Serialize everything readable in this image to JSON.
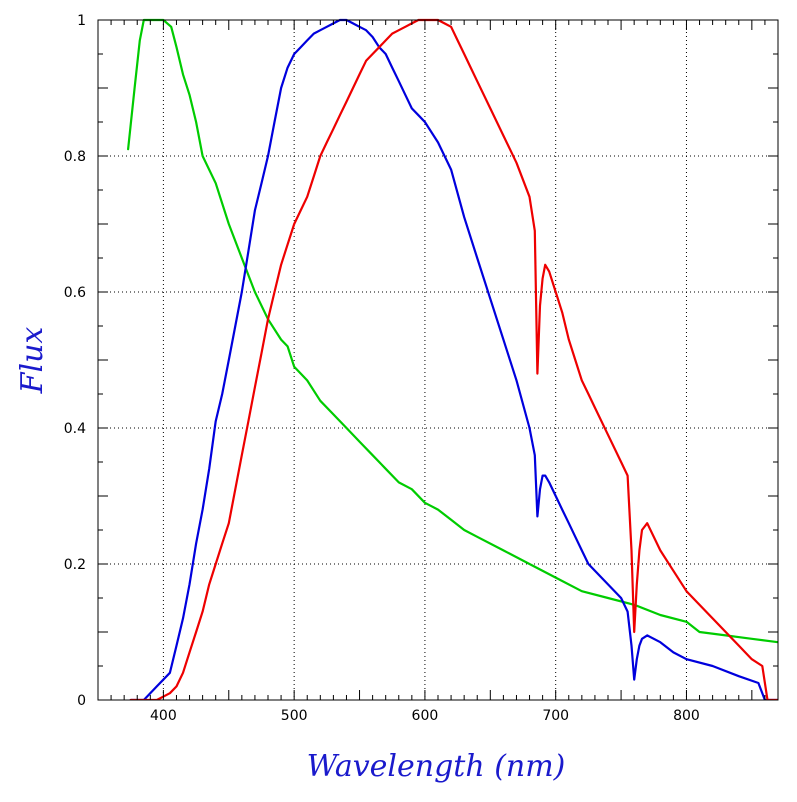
{
  "colors": {
    "axis_title": "#1a1acc",
    "frame": "#000000",
    "grid": "#000000"
  },
  "chart_data": {
    "type": "line",
    "title": "",
    "xlabel": "Wavelength (nm)",
    "ylabel": "Flux",
    "xlim": [
      350,
      870
    ],
    "ylim": [
      0,
      1
    ],
    "grid": true,
    "legend": "none",
    "x_ticks": [
      400,
      500,
      600,
      700,
      800
    ],
    "x_tick_labels": [
      "400",
      "500",
      "600",
      "700",
      "800"
    ],
    "y_ticks": [
      0,
      0.2,
      0.4,
      0.6,
      0.8,
      1
    ],
    "y_tick_labels": [
      "0",
      "0.2",
      "0.4",
      "0.6",
      "0.8",
      "1"
    ],
    "series": [
      {
        "color": "#00cc00",
        "x": [
          373,
          378,
          382,
          385,
          390,
          395,
          400,
          403,
          406,
          410,
          415,
          420,
          425,
          430,
          440,
          450,
          460,
          470,
          480,
          490,
          495,
          500,
          510,
          520,
          530,
          540,
          550,
          560,
          570,
          580,
          590,
          600,
          610,
          620,
          630,
          640,
          660,
          680,
          700,
          720,
          740,
          760,
          780,
          800,
          810,
          830,
          850,
          870
        ],
        "y": [
          0.81,
          0.9,
          0.97,
          1.0,
          1.0,
          1.0,
          1.0,
          0.995,
          0.99,
          0.96,
          0.92,
          0.89,
          0.85,
          0.8,
          0.76,
          0.7,
          0.65,
          0.6,
          0.56,
          0.53,
          0.52,
          0.49,
          0.47,
          0.44,
          0.42,
          0.4,
          0.38,
          0.36,
          0.34,
          0.32,
          0.31,
          0.29,
          0.28,
          0.265,
          0.25,
          0.24,
          0.22,
          0.2,
          0.18,
          0.16,
          0.15,
          0.14,
          0.125,
          0.115,
          0.1,
          0.095,
          0.09,
          0.085
        ]
      },
      {
        "color": "#0000dd",
        "x": [
          375,
          385,
          395,
          405,
          410,
          415,
          420,
          425,
          430,
          435,
          440,
          445,
          450,
          455,
          460,
          465,
          470,
          475,
          480,
          485,
          490,
          495,
          500,
          505,
          510,
          515,
          520,
          525,
          530,
          535,
          540,
          545,
          550,
          555,
          560,
          565,
          570,
          575,
          580,
          585,
          590,
          595,
          600,
          610,
          620,
          630,
          640,
          650,
          660,
          670,
          680,
          684,
          686,
          688,
          690,
          692,
          695,
          700,
          705,
          710,
          715,
          720,
          725,
          730,
          740,
          750,
          755,
          758,
          760,
          762,
          764,
          766,
          770,
          780,
          790,
          800,
          820,
          840,
          855,
          860,
          870
        ],
        "y": [
          0.0,
          0.0,
          0.02,
          0.04,
          0.08,
          0.12,
          0.17,
          0.23,
          0.28,
          0.34,
          0.41,
          0.45,
          0.5,
          0.55,
          0.6,
          0.66,
          0.72,
          0.76,
          0.8,
          0.85,
          0.9,
          0.93,
          0.95,
          0.96,
          0.97,
          0.98,
          0.985,
          0.99,
          0.995,
          1.0,
          1.0,
          0.995,
          0.99,
          0.985,
          0.975,
          0.96,
          0.95,
          0.93,
          0.91,
          0.89,
          0.87,
          0.86,
          0.85,
          0.82,
          0.78,
          0.71,
          0.65,
          0.59,
          0.53,
          0.47,
          0.4,
          0.36,
          0.27,
          0.31,
          0.33,
          0.33,
          0.32,
          0.3,
          0.28,
          0.26,
          0.24,
          0.22,
          0.2,
          0.19,
          0.17,
          0.15,
          0.13,
          0.08,
          0.03,
          0.06,
          0.08,
          0.09,
          0.095,
          0.085,
          0.07,
          0.06,
          0.05,
          0.035,
          0.025,
          0.0,
          0.0
        ]
      },
      {
        "color": "#ee0000",
        "x": [
          375,
          385,
          395,
          405,
          410,
          415,
          420,
          425,
          430,
          435,
          440,
          445,
          450,
          455,
          460,
          465,
          470,
          475,
          480,
          485,
          490,
          495,
          500,
          505,
          510,
          515,
          520,
          525,
          530,
          535,
          540,
          545,
          550,
          555,
          560,
          565,
          570,
          575,
          580,
          585,
          590,
          595,
          600,
          605,
          610,
          615,
          620,
          625,
          630,
          635,
          640,
          650,
          660,
          670,
          680,
          684,
          686,
          688,
          690,
          692,
          695,
          700,
          705,
          710,
          715,
          720,
          725,
          730,
          740,
          750,
          755,
          758,
          760,
          762,
          764,
          766,
          770,
          780,
          790,
          800,
          820,
          840,
          850,
          858,
          862,
          870
        ],
        "y": [
          0.0,
          0.0,
          0.0,
          0.01,
          0.02,
          0.04,
          0.07,
          0.1,
          0.13,
          0.17,
          0.2,
          0.23,
          0.26,
          0.31,
          0.36,
          0.41,
          0.46,
          0.51,
          0.56,
          0.6,
          0.64,
          0.67,
          0.7,
          0.72,
          0.74,
          0.77,
          0.8,
          0.82,
          0.84,
          0.86,
          0.88,
          0.9,
          0.92,
          0.94,
          0.95,
          0.96,
          0.97,
          0.98,
          0.985,
          0.99,
          0.995,
          1.0,
          1.0,
          1.0,
          1.0,
          0.995,
          0.99,
          0.97,
          0.95,
          0.93,
          0.91,
          0.87,
          0.83,
          0.79,
          0.74,
          0.69,
          0.48,
          0.58,
          0.62,
          0.64,
          0.63,
          0.6,
          0.57,
          0.53,
          0.5,
          0.47,
          0.45,
          0.43,
          0.39,
          0.35,
          0.33,
          0.22,
          0.1,
          0.17,
          0.22,
          0.25,
          0.26,
          0.22,
          0.19,
          0.16,
          0.12,
          0.08,
          0.06,
          0.05,
          0.0,
          0.0
        ]
      }
    ]
  }
}
